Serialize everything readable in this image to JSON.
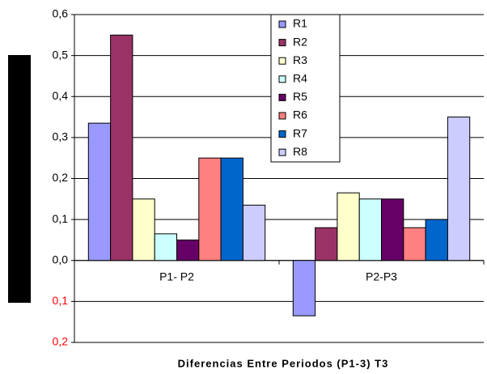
{
  "chart_data": {
    "type": "bar",
    "categories": [
      "P1- P2",
      "P2-P3"
    ],
    "series": [
      {
        "name": "R1",
        "color": "#9999ff",
        "values": [
          0.335,
          -0.135
        ]
      },
      {
        "name": "R2",
        "color": "#993366",
        "values": [
          0.55,
          0.08
        ]
      },
      {
        "name": "R3",
        "color": "#ffffcc",
        "values": [
          0.15,
          0.165
        ]
      },
      {
        "name": "R4",
        "color": "#ccffff",
        "values": [
          0.065,
          0.15
        ]
      },
      {
        "name": "R5",
        "color": "#660066",
        "values": [
          0.05,
          0.15
        ]
      },
      {
        "name": "R6",
        "color": "#ff8080",
        "values": [
          0.25,
          0.08
        ]
      },
      {
        "name": "R7",
        "color": "#0066cc",
        "values": [
          0.25,
          0.1
        ]
      },
      {
        "name": "R8",
        "color": "#ccccff",
        "values": [
          0.135,
          0.35
        ]
      }
    ],
    "xlabel": "Diferencias Entre Periodos (P1-3) T3",
    "ylim": [
      -0.2,
      0.6
    ],
    "yticks": [
      {
        "value": -0.2,
        "label": "0,2"
      },
      {
        "value": -0.1,
        "label": "0,1"
      },
      {
        "value": 0,
        "label": "0,0"
      },
      {
        "value": 0.1,
        "label": "0,1"
      },
      {
        "value": 0.2,
        "label": "0,2"
      },
      {
        "value": 0.3,
        "label": "0,3"
      },
      {
        "value": 0.4,
        "label": "0,4"
      },
      {
        "value": 0.5,
        "label": "0,5"
      },
      {
        "value": 0.6,
        "label": "0,6"
      }
    ],
    "negative_tick_label_color": "#ff0000",
    "grid": true,
    "legend": "top"
  }
}
